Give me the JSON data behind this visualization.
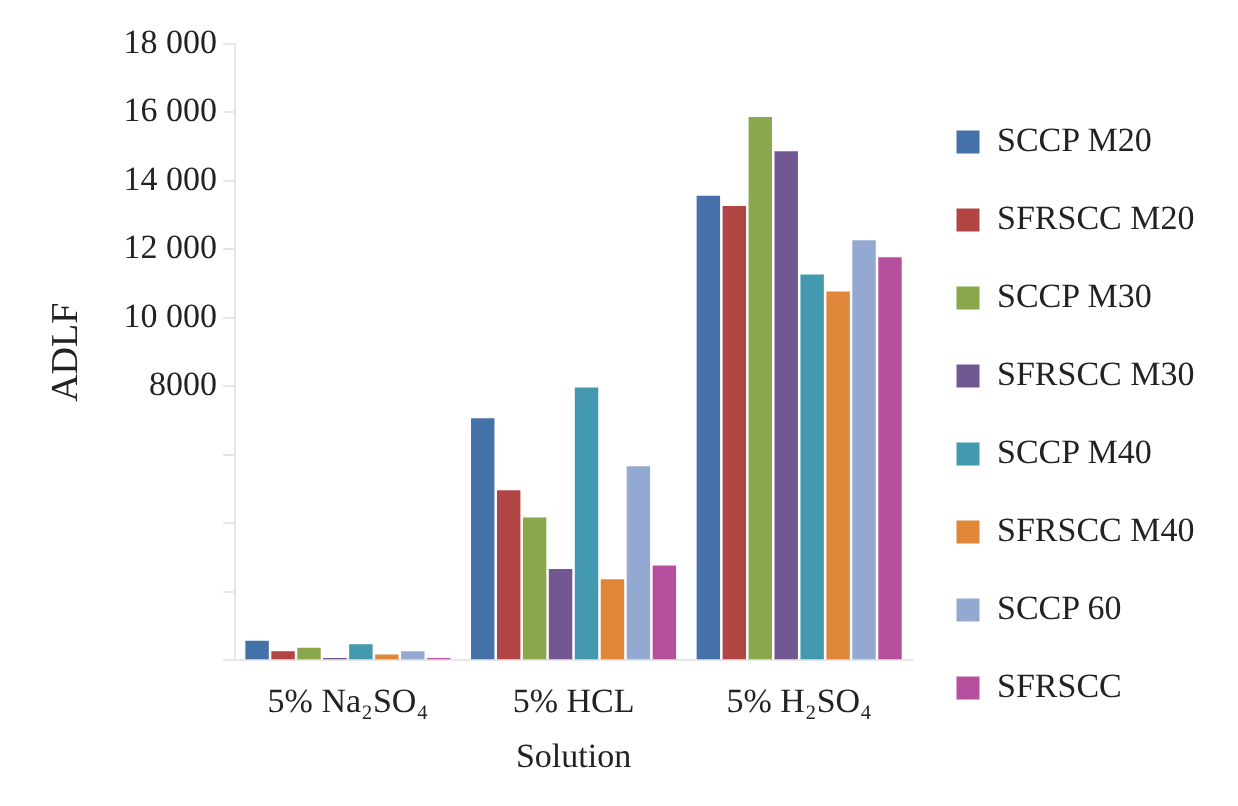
{
  "chart_data": {
    "type": "bar",
    "xlabel": "Solution",
    "ylabel": "ADLF",
    "categories": [
      "5% Na₂SO₄",
      "5% HCL",
      "5% H₂SO₄"
    ],
    "series": [
      {
        "name": "SCCP M20",
        "color": "#4472a8",
        "values": [
          600,
          7100,
          13600
        ]
      },
      {
        "name": "SFRSCC M20",
        "color": "#b04543",
        "values": [
          300,
          5000,
          13300
        ]
      },
      {
        "name": "SCCP M30",
        "color": "#8aa84b",
        "values": [
          400,
          4200,
          15900
        ]
      },
      {
        "name": "SFRSCC M30",
        "color": "#715893",
        "values": [
          100,
          2700,
          14900
        ]
      },
      {
        "name": "SCCP M40",
        "color": "#4299b0",
        "values": [
          500,
          8000,
          11300
        ]
      },
      {
        "name": "SFRSCC M40",
        "color": "#e08638",
        "values": [
          200,
          2400,
          10800
        ]
      },
      {
        "name": "SCCP 60",
        "color": "#93a9d1",
        "values": [
          300,
          5700,
          12300
        ]
      },
      {
        "name": "SFRSCC",
        "color": "#b64f9e",
        "values": [
          100,
          2800,
          11800
        ]
      }
    ],
    "ylim": [
      0,
      18000
    ],
    "yticks": [
      {
        "value": 0,
        "label": null
      },
      {
        "value": 2000,
        "label": null
      },
      {
        "value": 4000,
        "label": null
      },
      {
        "value": 6000,
        "label": null
      },
      {
        "value": 8000,
        "label": "8000"
      },
      {
        "value": 10000,
        "label": "10 000"
      },
      {
        "value": 12000,
        "label": "12 000"
      },
      {
        "value": 14000,
        "label": "14 000"
      },
      {
        "value": 16000,
        "label": "16 000"
      },
      {
        "value": 18000,
        "label": "18 000"
      }
    ],
    "grid": false,
    "legend": "right"
  }
}
